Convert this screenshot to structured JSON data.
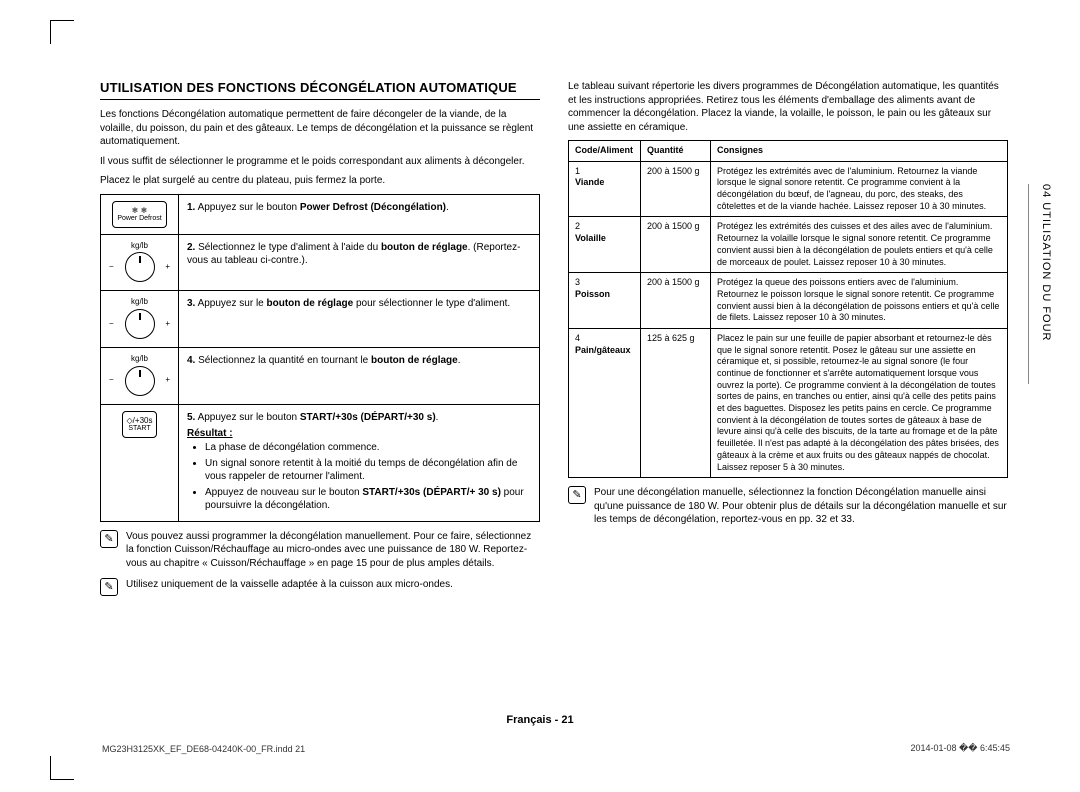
{
  "sidebar": {
    "text": "04  UTILISATION DU FOUR"
  },
  "left": {
    "heading": "UTILISATION DES FONCTIONS DÉCONGÉLATION AUTOMATIQUE",
    "intro1": "Les fonctions Décongélation automatique permettent de faire décongeler de la viande, de la volaille, du poisson, du pain et des gâteaux. Le temps de décongélation et la puissance se règlent automatiquement.",
    "intro2": "Il vous suffit de sélectionner le programme et le poids correspondant aux aliments à décongeler.",
    "intro3": "Placez le plat surgelé au centre du plateau, puis fermez la porte.",
    "step1": {
      "icon_top": "❄ ❄",
      "icon_label": "Power Defrost",
      "textA": "Appuyez sur le bouton ",
      "bold": "Power Defrost (Décongélation)",
      "textB": "."
    },
    "step2": {
      "textA": "Sélectionnez le type d'aliment à l'aide du ",
      "bold": "bouton de réglage",
      "textB": ". (Reportez-vous au tableau ci-contre.)."
    },
    "step3": {
      "textA": "Appuyez sur le ",
      "bold": "bouton de réglage",
      "textB": " pour sélectionner le type d'aliment."
    },
    "step4": {
      "textA": "Sélectionnez la quantité en tournant le ",
      "bold": "bouton de réglage",
      "textB": "."
    },
    "step5": {
      "icon_label": "START",
      "icon_sym": "◇/+30s",
      "textA": "Appuyez sur le bouton ",
      "bold1": "START/+30s (DÉPART/+30 s)",
      "textB": ".",
      "result_label": "Résultat :",
      "b1": "La phase de décongélation commence.",
      "b2": "Un signal sonore retentit à la moitié du temps de décongélation afin de vous rappeler de retourner l'aliment.",
      "b3a": "Appuyez de nouveau sur le bouton ",
      "b3bold": "START/+30s (DÉPART/+ 30 s)",
      "b3b": " pour poursuivre la décongélation."
    },
    "note1": "Vous pouvez aussi programmer la décongélation manuellement. Pour ce faire, sélectionnez la fonction Cuisson/Réchauffage au micro-ondes avec une puissance de 180 W. Reportez-vous au chapitre « Cuisson/Réchauffage » en page 15 pour de plus amples détails.",
    "note2": "Utilisez uniquement de la vaisselle adaptée à la cuisson aux micro-ondes."
  },
  "right": {
    "intro": "Le tableau suivant répertorie les divers programmes de Décongélation automatique, les quantités et les instructions appropriées. Retirez tous les éléments d'emballage des aliments avant de commencer la décongélation. Placez la viande, la volaille, le poisson, le pain ou les gâteaux sur une assiette en céramique.",
    "table": {
      "headers": {
        "c1": "Code/Aliment",
        "c2": "Quantité",
        "c3": "Consignes"
      },
      "rows": [
        {
          "code": "1",
          "name": "Viande",
          "qty": "200 à 1500 g",
          "rec": "Protégez les extrémités avec de l'aluminium. Retournez la viande lorsque le signal sonore retentit. Ce programme convient à la décongélation du bœuf, de l'agneau, du porc, des steaks, des côtelettes et de la viande hachée. Laissez reposer 10 à 30 minutes."
        },
        {
          "code": "2",
          "name": "Volaille",
          "qty": "200 à 1500 g",
          "rec": "Protégez les extrémités des cuisses et des ailes avec de l'aluminium. Retournez la volaille lorsque le signal sonore retentit. Ce programme convient aussi bien à la décongélation de poulets entiers et qu'à celle de morceaux de poulet. Laissez reposer 10 à 30 minutes."
        },
        {
          "code": "3",
          "name": "Poisson",
          "qty": "200 à 1500 g",
          "rec": "Protégez la queue des poissons entiers avec de l'aluminium. Retournez le poisson lorsque le signal sonore retentit. Ce programme convient aussi bien à la décongélation de poissons entiers et qu'à celle de filets. Laissez reposer 10 à 30 minutes."
        },
        {
          "code": "4",
          "name": "Pain/gâteaux",
          "qty": "125 à 625 g",
          "rec": "Placez le pain sur une feuille de papier absorbant et retournez-le dès que le signal sonore retentit. Posez le gâteau sur une assiette en céramique et, si possible, retournez-le au signal sonore (le four continue de fonctionner et s'arrête automatiquement lorsque vous ouvrez la porte). Ce programme convient à la décongélation de toutes sortes de pains, en tranches ou entier, ainsi qu'à celle des petits pains et des baguettes. Disposez les petits pains en cercle. Ce programme convient à la décongélation de toutes sortes de gâteaux à base de levure ainsi qu'à celle des biscuits, de la tarte au fromage et de la pâte feuilletée. Il n'est pas adapté à la décongélation des pâtes brisées, des gâteaux à la crème et aux fruits ou des gâteaux nappés de chocolat. Laissez reposer 5 à 30 minutes."
        }
      ]
    },
    "note": "Pour une décongélation manuelle, sélectionnez la fonction Décongélation manuelle ainsi qu'une puissance de 180 W. Pour obtenir plus de détails sur la décongélation manuelle et sur les temps de décongélation, reportez-vous en pp. 32 et 33."
  },
  "footer": {
    "center": "Français - 21",
    "left": "MG23H3125XK_EF_DE68-04240K-00_FR.indd   21",
    "right": "2014-01-08   �� 6:45:45"
  },
  "labels": {
    "num1": "1.",
    "num2": "2.",
    "num3": "3.",
    "num4": "4.",
    "num5": "5.",
    "knob_top": "kg/lb",
    "knob_minus": "−",
    "knob_plus": "+"
  }
}
